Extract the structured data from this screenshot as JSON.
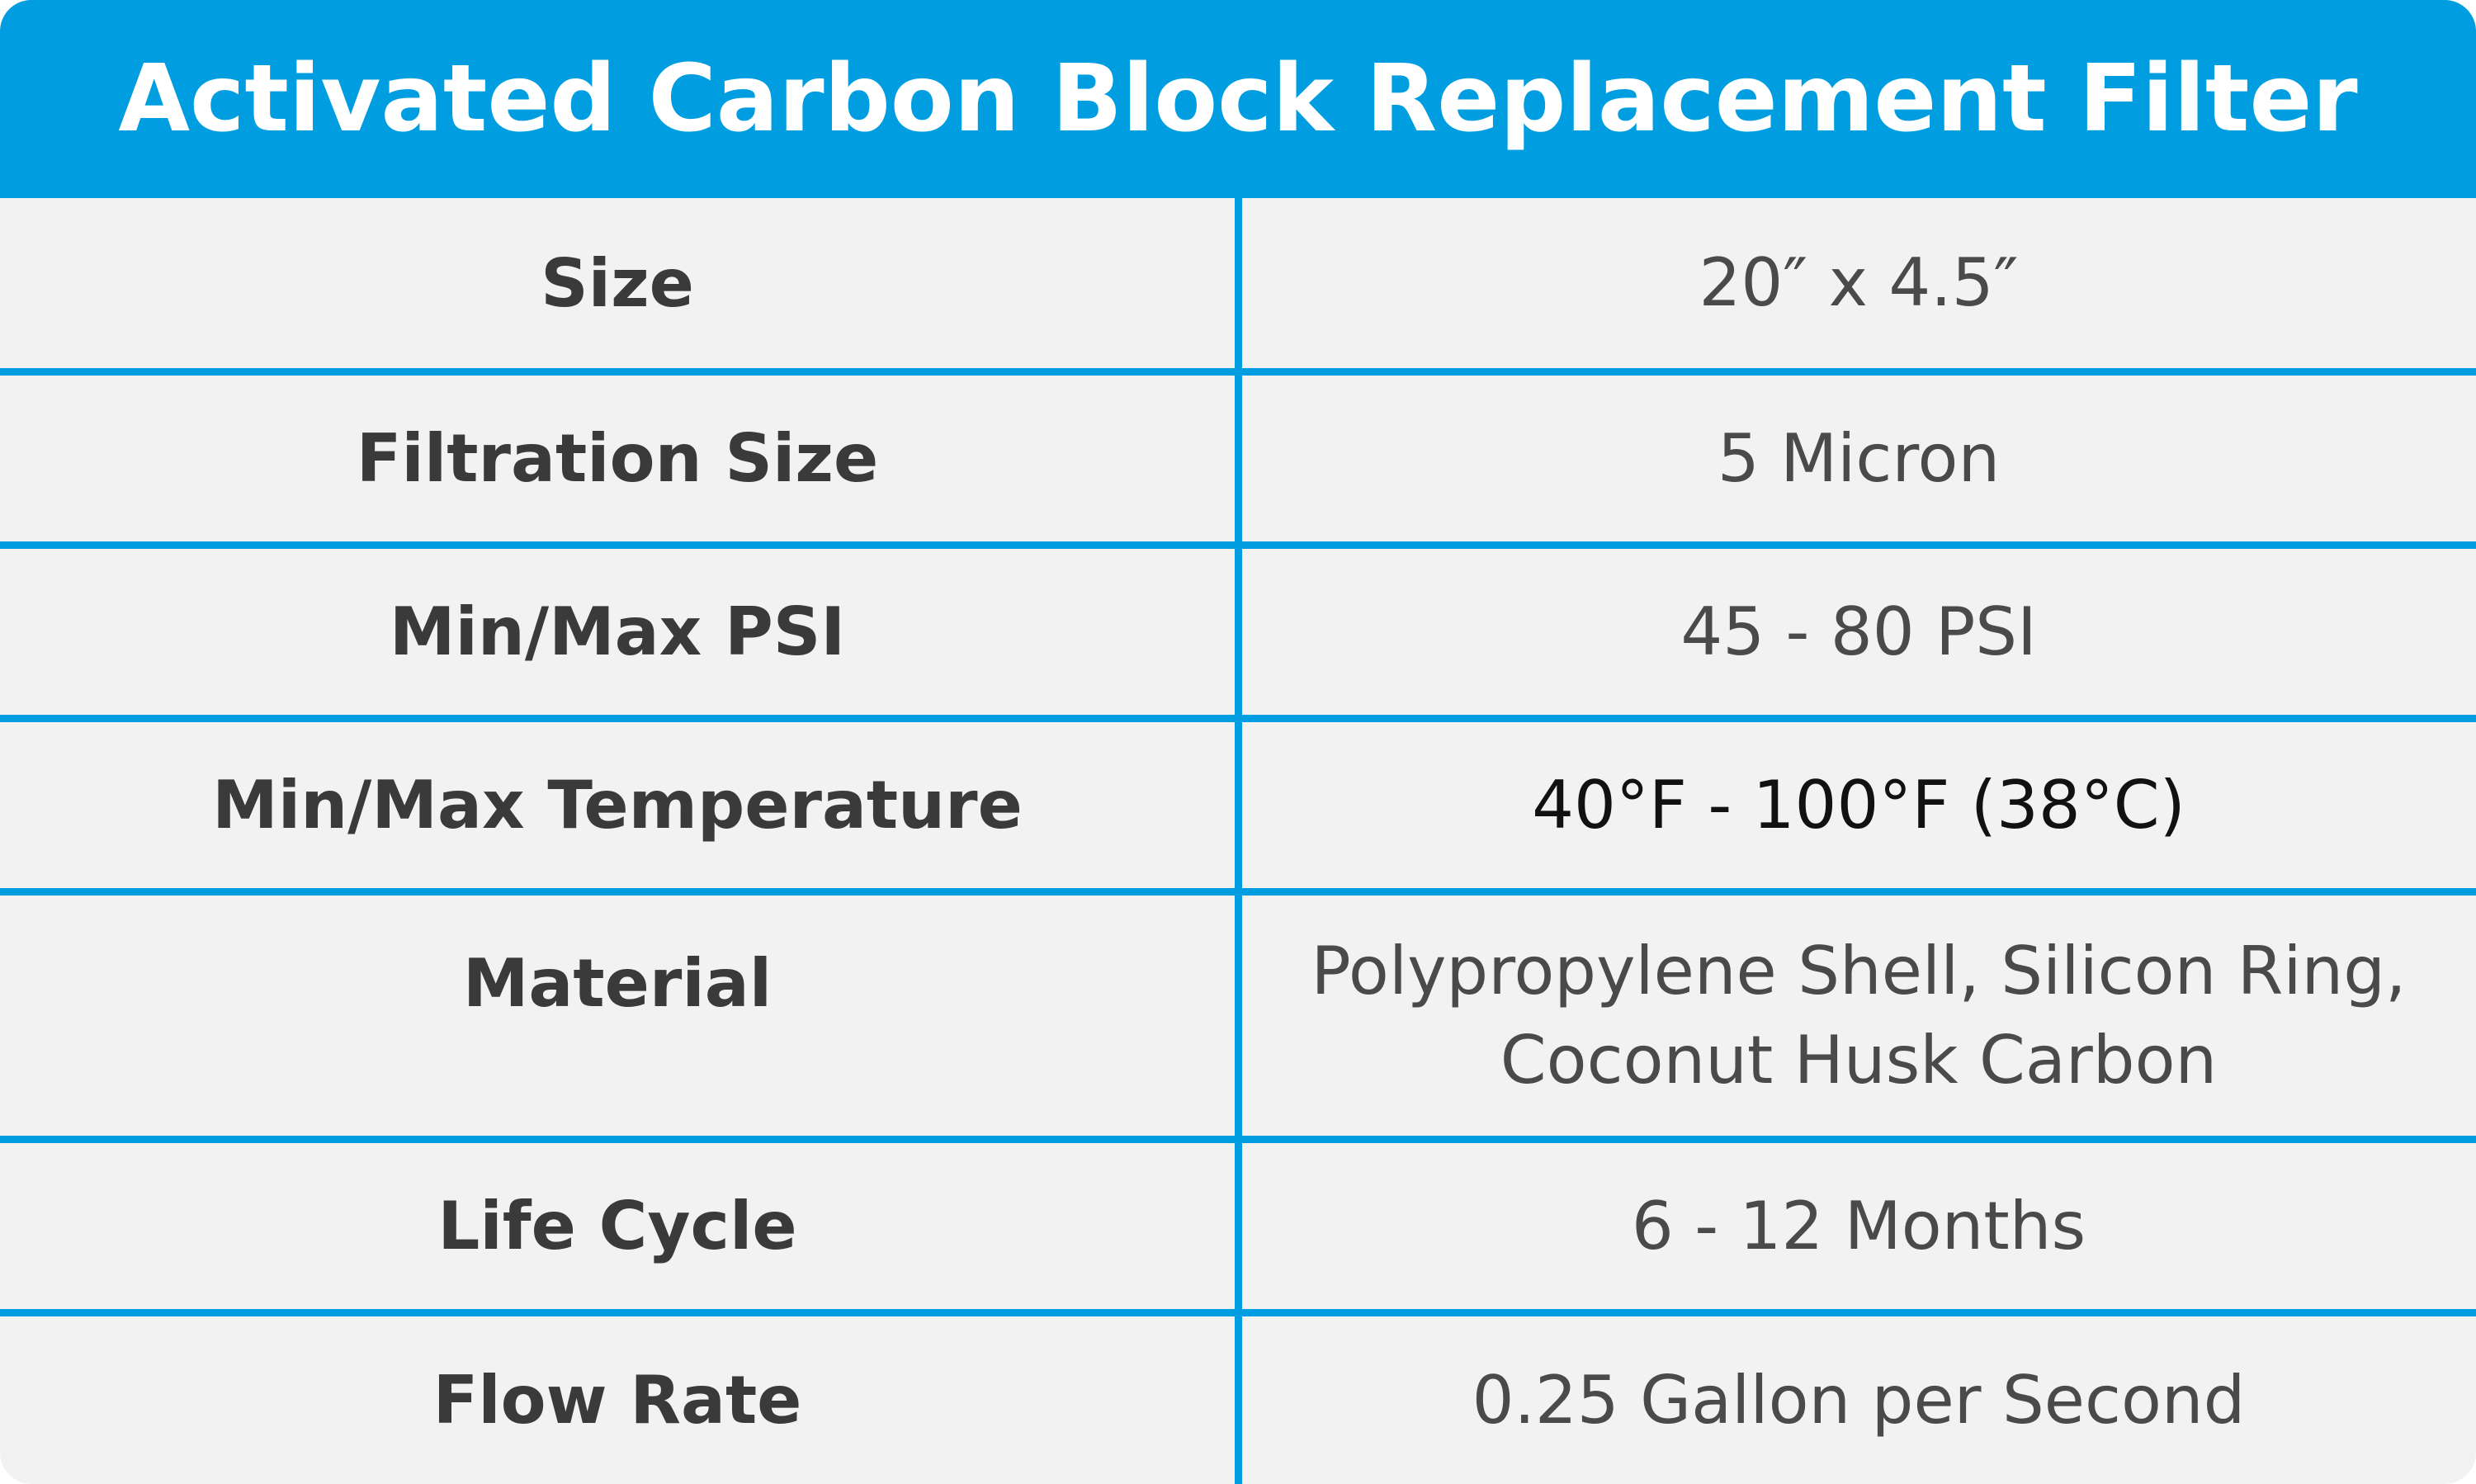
{
  "title": "Activated Carbon Block Replacement Filter",
  "colors": {
    "header_background": "#009ee0",
    "grid_lines": "#009ee0",
    "row_background": "#f2f2f2",
    "label_text": "#3a3a3a",
    "value_text": "#4a4a4a"
  },
  "rows": [
    {
      "label": "Size",
      "value": "20″ x 4.5″"
    },
    {
      "label": "Filtration Size",
      "value": "5 Micron"
    },
    {
      "label": "Min/Max PSI",
      "value": "45 - 80 PSI"
    },
    {
      "label": "Min/Max Temperature",
      "value": "40°F - 100°F (38°C)"
    },
    {
      "label": "Material",
      "value_lines": [
        "Polypropylene Shell, Silicon Ring,",
        "Coconut Husk Carbon"
      ]
    },
    {
      "label": "Life Cycle",
      "value": "6 - 12 Months"
    },
    {
      "label": "Flow Rate",
      "value": "0.25 Gallon per Second"
    }
  ]
}
